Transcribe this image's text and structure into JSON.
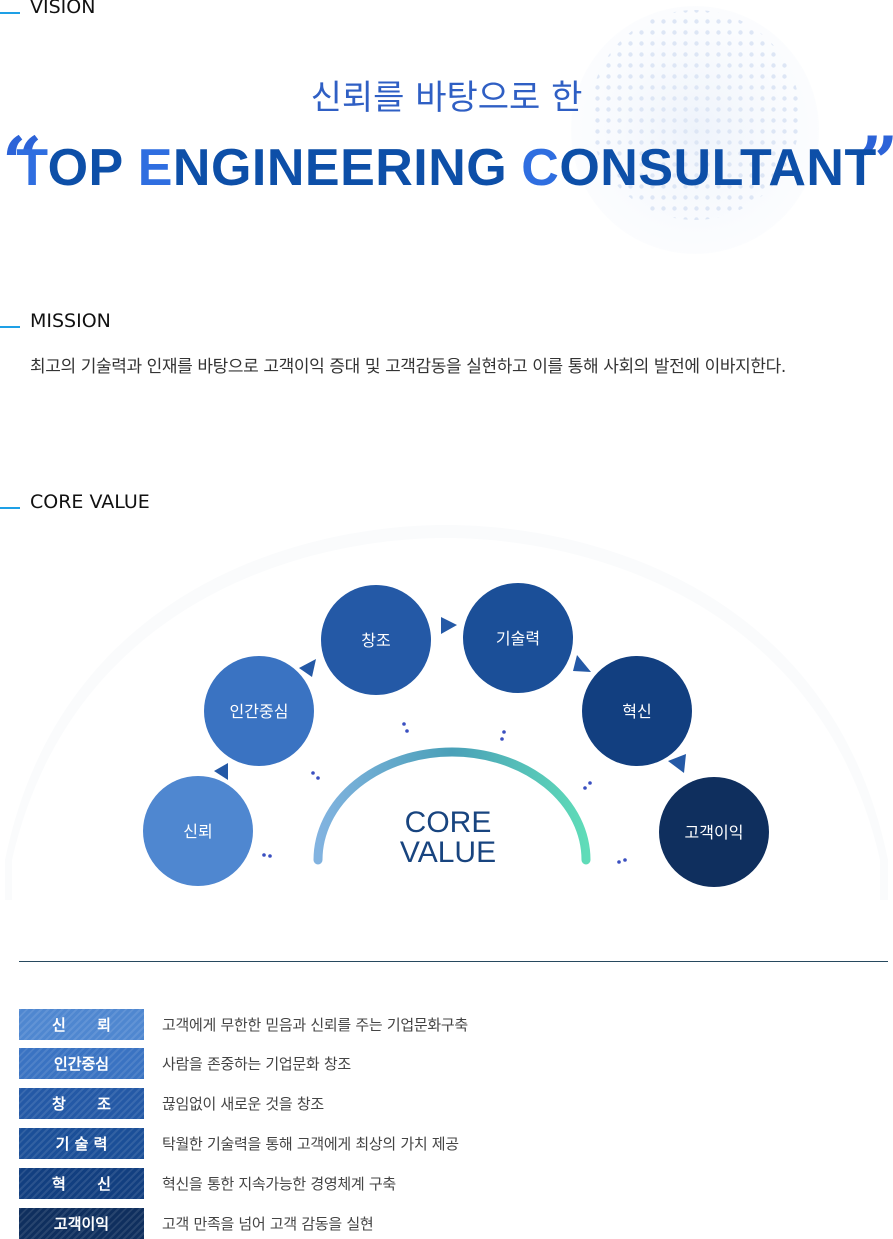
{
  "vision": {
    "label": "VISION",
    "subtitle": "신뢰를 바탕으로 한",
    "quote_open": "“",
    "quote_close": "”",
    "headline_words": [
      {
        "first": "T",
        "rest": "OP"
      },
      {
        "first": "E",
        "rest": "NGINEERING"
      },
      {
        "first": "C",
        "rest": "ONSULTANT"
      }
    ]
  },
  "mission": {
    "label": "MISSION",
    "text": "최고의 기술력과 인재를 바탕으로 고객이익 증대 및 고객감동을 실현하고 이를 통해 사회의 발전에 이바지한다."
  },
  "core_value": {
    "label": "CORE VALUE",
    "center_line1": "CORE",
    "center_line2": "VALUE",
    "circles": [
      {
        "label": "신뢰",
        "color": "#4f87d0"
      },
      {
        "label": "인간중심",
        "color": "#3a73c2"
      },
      {
        "label": "창조",
        "color": "#2459a6"
      },
      {
        "label": "기술력",
        "color": "#1b4f98"
      },
      {
        "label": "혁신",
        "color": "#123f80"
      },
      {
        "label": "고객이익",
        "color": "#0f2f5e"
      }
    ],
    "arc_colors": {
      "start": "#82b3e0",
      "mid": "#4aa0b8",
      "end": "#5fdcb8"
    },
    "values": [
      {
        "badge": "신      뢰",
        "text": "고객에게 무한한 믿음과 신뢰를 주는 기업문화구축",
        "color": "#4f87d0"
      },
      {
        "badge": "인간중심",
        "text": "사람을 존중하는 기업문화 창조",
        "color": "#3a73c2"
      },
      {
        "badge": "창      조",
        "text": "끊임없이 새로운 것을 창조",
        "color": "#2459a6"
      },
      {
        "badge": "기 술 력",
        "text": "탁월한 기술력을 통해 고객에게 최상의 가치 제공",
        "color": "#1b4f98"
      },
      {
        "badge": "혁      신",
        "text": "혁신을 통한 지속가능한 경영체계 구축",
        "color": "#123f80"
      },
      {
        "badge": "고객이익",
        "text": "고객 만족을 넘어 고객 감동을 실현",
        "color": "#0f2f5e"
      }
    ]
  }
}
